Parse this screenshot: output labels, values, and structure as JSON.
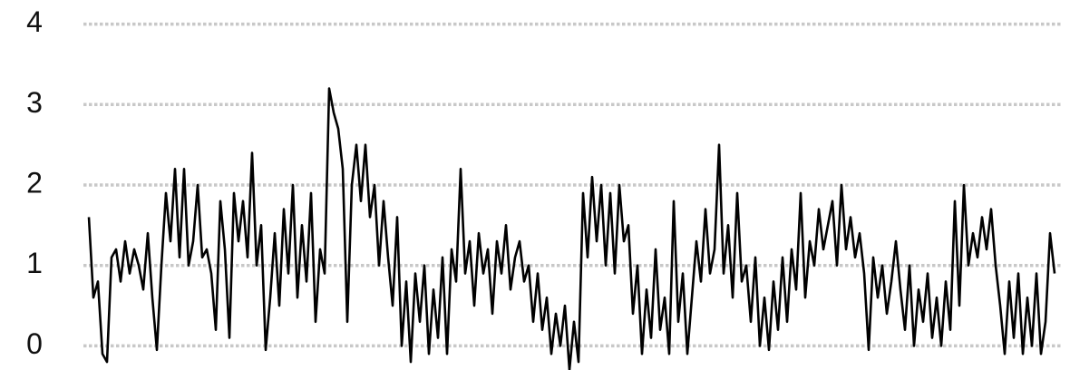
{
  "chart_data": {
    "type": "line",
    "series": [
      {
        "color": "#000000",
        "values": [
          1.6,
          0.6,
          0.8,
          -0.1,
          -0.2,
          1.1,
          1.2,
          0.8,
          1.3,
          0.9,
          1.2,
          1.0,
          0.7,
          1.4,
          0.6,
          -0.05,
          1.0,
          1.9,
          1.3,
          2.2,
          1.1,
          2.2,
          1.0,
          1.3,
          2.0,
          1.1,
          1.2,
          0.9,
          0.2,
          1.8,
          1.2,
          0.1,
          1.9,
          1.3,
          1.8,
          1.1,
          2.4,
          1.0,
          1.5,
          -0.05,
          0.6,
          1.4,
          0.5,
          1.7,
          0.9,
          2.0,
          0.6,
          1.5,
          0.8,
          1.9,
          0.3,
          1.2,
          0.9,
          3.2,
          2.9,
          2.7,
          2.2,
          0.3,
          2.0,
          2.5,
          1.8,
          2.5,
          1.6,
          2.0,
          1.0,
          1.8,
          1.1,
          0.5,
          1.6,
          0.0,
          0.8,
          -0.2,
          0.9,
          0.3,
          1.0,
          -0.1,
          0.7,
          0.1,
          1.1,
          -0.1,
          1.2,
          0.8,
          2.2,
          0.9,
          1.3,
          0.5,
          1.4,
          0.9,
          1.2,
          0.4,
          1.3,
          0.9,
          1.5,
          0.7,
          1.1,
          1.3,
          0.8,
          1.0,
          0.3,
          0.9,
          0.2,
          0.6,
          -0.1,
          0.4,
          0.0,
          0.5,
          -0.3,
          0.3,
          -0.2,
          1.9,
          1.1,
          2.1,
          1.3,
          2.0,
          1.0,
          1.9,
          0.9,
          2.0,
          1.3,
          1.5,
          0.4,
          1.0,
          -0.1,
          0.7,
          0.1,
          1.2,
          0.2,
          0.6,
          -0.1,
          1.8,
          0.3,
          0.9,
          -0.1,
          0.6,
          1.3,
          0.8,
          1.7,
          0.9,
          1.2,
          2.5,
          0.9,
          1.5,
          0.6,
          1.9,
          0.8,
          1.0,
          0.3,
          1.1,
          0.0,
          0.6,
          -0.05,
          0.8,
          0.2,
          1.1,
          0.3,
          1.2,
          0.7,
          1.9,
          0.6,
          1.3,
          1.0,
          1.7,
          1.2,
          1.5,
          1.8,
          1.0,
          2.0,
          1.2,
          1.6,
          1.1,
          1.4,
          0.9,
          -0.05,
          1.1,
          0.6,
          1.0,
          0.4,
          0.8,
          1.3,
          0.7,
          0.2,
          1.0,
          0.0,
          0.7,
          0.3,
          0.9,
          0.1,
          0.6,
          0.0,
          0.8,
          0.2,
          1.8,
          0.5,
          2.0,
          1.0,
          1.4,
          1.1,
          1.6,
          1.2,
          1.7,
          1.0,
          0.5,
          -0.1,
          0.8,
          0.1,
          0.9,
          -0.1,
          0.6,
          0.0,
          0.9,
          -0.1,
          0.3,
          1.4,
          0.9
        ]
      }
    ],
    "ylim": [
      -0.3,
      4.3
    ],
    "yticks": [
      0,
      1,
      2,
      3,
      4
    ],
    "grid": true
  }
}
